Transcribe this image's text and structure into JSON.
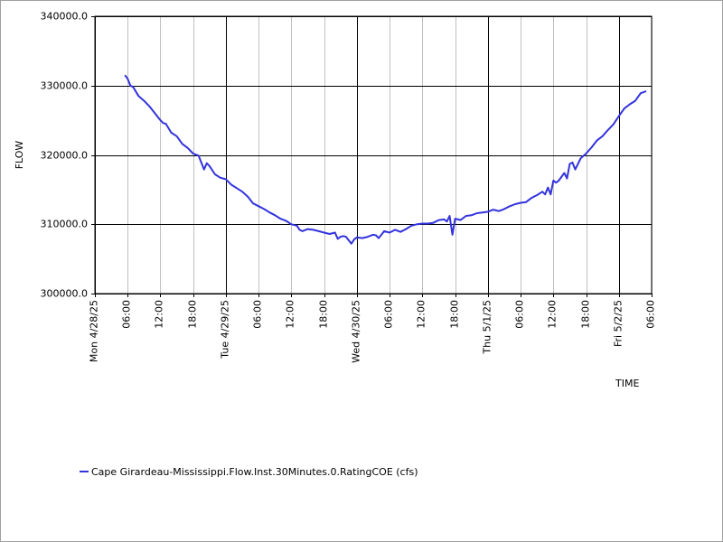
{
  "chart_data": {
    "type": "line",
    "xlabel": "TIME",
    "ylabel": "FLOW",
    "ylim": [
      300000,
      340000
    ],
    "yticks": [
      {
        "value": 300000,
        "label": "300000.0"
      },
      {
        "value": 310000,
        "label": "310000.0"
      },
      {
        "value": 320000,
        "label": "320000.0"
      },
      {
        "value": 330000,
        "label": "330000.0"
      },
      {
        "value": 340000,
        "label": "340000.0"
      }
    ],
    "x_unit": "hours since Mon 4/28/25 00:00",
    "xlim": [
      0,
      102
    ],
    "xticks": [
      {
        "value": 0,
        "label": "Mon 4/28/25",
        "major": true
      },
      {
        "value": 6,
        "label": "06:00",
        "major": false
      },
      {
        "value": 12,
        "label": "12:00",
        "major": false
      },
      {
        "value": 18,
        "label": "18:00",
        "major": false
      },
      {
        "value": 24,
        "label": "Tue 4/29/25",
        "major": true
      },
      {
        "value": 30,
        "label": "06:00",
        "major": false
      },
      {
        "value": 36,
        "label": "12:00",
        "major": false
      },
      {
        "value": 42,
        "label": "18:00",
        "major": false
      },
      {
        "value": 48,
        "label": "Wed 4/30/25",
        "major": true
      },
      {
        "value": 54,
        "label": "06:00",
        "major": false
      },
      {
        "value": 60,
        "label": "12:00",
        "major": false
      },
      {
        "value": 66,
        "label": "18:00",
        "major": false
      },
      {
        "value": 72,
        "label": "Thu 5/1/25",
        "major": true
      },
      {
        "value": 78,
        "label": "06:00",
        "major": false
      },
      {
        "value": 84,
        "label": "12:00",
        "major": false
      },
      {
        "value": 90,
        "label": "18:00",
        "major": false
      },
      {
        "value": 96,
        "label": "Fri 5/2/25",
        "major": true
      },
      {
        "value": 102,
        "label": "06:00",
        "major": false
      }
    ],
    "grid": true,
    "legend_position": "bottom-left",
    "series": [
      {
        "name": "Cape Girardeau-Mississippi.Flow.Inst.30Minutes.0.RatingCOE (cfs)",
        "color": "#3333dd",
        "x": [
          5.5,
          6,
          6.5,
          7,
          8,
          9,
          10,
          11,
          12,
          12.5,
          13,
          14,
          15,
          16,
          17,
          18,
          19,
          20,
          20.5,
          21,
          22,
          23,
          24,
          25,
          26,
          27,
          28,
          29,
          30,
          31,
          32,
          33,
          34,
          35,
          36,
          37,
          37.5,
          38,
          39,
          40,
          41,
          42,
          43,
          44,
          44.5,
          45,
          45.5,
          46,
          47,
          47.5,
          48,
          49,
          50,
          51,
          51.5,
          52,
          52.5,
          53,
          54,
          55,
          56,
          57,
          58,
          59,
          60,
          61,
          62,
          63,
          64,
          64.5,
          65,
          65.5,
          66,
          67,
          68,
          69,
          70,
          71,
          72,
          73,
          74,
          75,
          76,
          77,
          78,
          79,
          80,
          81,
          82,
          82.5,
          83,
          83.5,
          84,
          84.5,
          85,
          86,
          86.5,
          87,
          87.5,
          88,
          89,
          90,
          91,
          92,
          93,
          94,
          95,
          96,
          97,
          98,
          99,
          100,
          101
        ],
        "values": [
          331500,
          331000,
          330000,
          329800,
          328500,
          327800,
          327000,
          326000,
          325000,
          324600,
          324500,
          323200,
          322700,
          321600,
          321000,
          320200,
          319900,
          317900,
          318800,
          318400,
          317200,
          316700,
          316500,
          315700,
          315200,
          314700,
          314000,
          313000,
          312600,
          312200,
          311700,
          311300,
          310800,
          310500,
          310000,
          309800,
          309200,
          309000,
          309300,
          309200,
          309000,
          308800,
          308600,
          308800,
          307900,
          308200,
          308300,
          308200,
          307200,
          307800,
          308100,
          308000,
          308200,
          308500,
          308400,
          308000,
          308500,
          309000,
          308800,
          309200,
          308900,
          309300,
          309800,
          310000,
          310100,
          310100,
          310200,
          310600,
          310700,
          310400,
          311200,
          308500,
          310800,
          310600,
          311200,
          311300,
          311600,
          311700,
          311800,
          312100,
          311900,
          312200,
          312600,
          312900,
          313100,
          313200,
          313800,
          314200,
          314700,
          314300,
          315300,
          314300,
          316300,
          316000,
          316300,
          317400,
          316600,
          318700,
          318900,
          317900,
          319500,
          320200,
          321100,
          322100,
          322700,
          323600,
          324400,
          325600,
          326700,
          327300,
          327800,
          328900,
          329200
        ]
      }
    ]
  }
}
